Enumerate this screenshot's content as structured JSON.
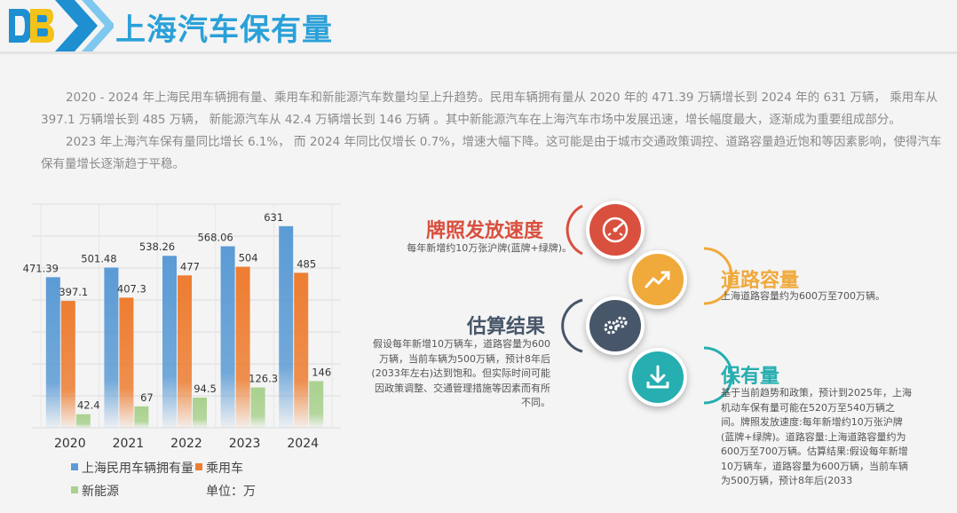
{
  "title": "上海汽车保有量",
  "intro": {
    "p1": "2020 - 2024 年上海民用车辆拥有量、乘用车和新能源汽车数量均呈上升趋势。民用车辆拥有量从 2020 年的 471.39 万辆增长到 2024 年的 631 万辆， 乘用车从 397.1 万辆增长到 485 万辆， 新能源汽车从 42.4 万辆增长到 146 万辆 。其中新能源汽车在上海汽车市场中发展迅速，增长幅度最大，逐渐成为重要组成部分。",
    "p2": "2023 年上海汽车保有量同比增长 6.1%， 而 2024 年同比仅增长 0.7%，增速大幅下降。这可能是由于城市交通政策调控、道路容量趋近饱和等因素影响，使得汽车保有量增长逐渐趋于平稳。"
  },
  "chart_data": {
    "type": "bar",
    "categories": [
      "2020",
      "2021",
      "2022",
      "2023",
      "2024"
    ],
    "series": [
      {
        "name": "上海民用车辆拥有量",
        "values": [
          471.39,
          501.48,
          538.26,
          568.06,
          631
        ],
        "labels": [
          "471.39",
          "501.48",
          "538.26",
          "568.06",
          "631"
        ],
        "color": "#5b9bd5"
      },
      {
        "name": "乘用车",
        "values": [
          397.1,
          407.3,
          477,
          504,
          485
        ],
        "labels": [
          "397.1",
          "407.3",
          "477",
          "504",
          "485"
        ],
        "color": "#ed7d31"
      },
      {
        "name": "新能源",
        "values": [
          42.4,
          67,
          94.5,
          126.3,
          146
        ],
        "labels": [
          "42.4",
          "67",
          "94.5",
          "126.3",
          "146"
        ],
        "color": "#a9d18e"
      }
    ],
    "ylim": [
      0,
      700
    ],
    "grid": true,
    "legend": "bottom",
    "unit_label": "单位：万"
  },
  "nodes": [
    {
      "title": "牌照发放速度",
      "desc": "每年新增约10万张沪牌(蓝牌+绿牌)。",
      "color": "#d9503f",
      "icon": "gauge-icon"
    },
    {
      "title": "道路容量",
      "desc": "上海道路容量约为600万至700万辆。",
      "color": "#f0a93b",
      "icon": "trend-chart-icon"
    },
    {
      "title": "估算结果",
      "desc": "假设每年新增10万辆车，道路容量为600万辆，当前车辆为500万辆，预计8年后(2033年左右)达到饱和。但实际时间可能因政策调整、交通管理措施等因素而有所不同。",
      "color": "#475669",
      "icon": "gears-icon"
    },
    {
      "title": "保有量",
      "desc": "基于当前趋势和政策，预计到2025年，上海机动车保有量可能在520万至540万辆之间。牌照发放速度:每年新增约10万张沪牌(蓝牌+绿牌)。道路容量:上海道路容量约为600万至700万辆。估算结果:假设每年新增10万辆车，道路容量为600万辆，当前车辆为500万辆，预计8年后(2033",
      "color": "#26aeb0",
      "icon": "download-icon"
    }
  ]
}
